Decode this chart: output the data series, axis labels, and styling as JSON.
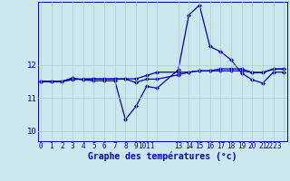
{
  "xlabel": "Graphe des températures (°c)",
  "x_values": [
    0,
    1,
    2,
    3,
    4,
    5,
    6,
    7,
    8,
    9,
    10,
    11,
    13,
    14,
    15,
    16,
    17,
    18,
    19,
    20,
    21,
    22,
    23
  ],
  "line1": [
    11.5,
    11.5,
    11.5,
    11.6,
    11.55,
    11.52,
    11.52,
    11.52,
    10.35,
    10.75,
    11.35,
    11.3,
    11.85,
    13.5,
    13.8,
    12.55,
    12.4,
    12.15,
    11.75,
    11.55,
    11.45,
    11.78,
    11.78
  ],
  "line2": [
    11.5,
    11.5,
    11.5,
    11.6,
    11.55,
    11.57,
    11.57,
    11.57,
    11.57,
    11.47,
    11.57,
    11.57,
    11.7,
    11.78,
    11.82,
    11.82,
    11.82,
    11.82,
    11.82,
    11.77,
    11.77,
    11.87,
    11.87
  ],
  "line3": [
    11.5,
    11.5,
    11.5,
    11.55,
    11.58,
    11.58,
    11.58,
    11.58,
    11.58,
    11.58,
    11.68,
    11.78,
    11.78,
    11.78,
    11.82,
    11.82,
    11.88,
    11.88,
    11.88,
    11.77,
    11.77,
    11.88,
    11.88
  ],
  "ylim": [
    9.7,
    13.9
  ],
  "yticks": [
    10,
    11,
    12
  ],
  "xtick_labels": [
    "0",
    "1",
    "2",
    "3",
    "4",
    "5",
    "6",
    "7",
    "8",
    "9",
    "1011",
    "",
    "13",
    "14",
    "15",
    "16",
    "17",
    "18",
    "19",
    "20",
    "21",
    "2223",
    ""
  ],
  "xtick_positions": [
    0,
    1,
    2,
    3,
    4,
    5,
    6,
    7,
    8,
    9,
    10,
    11,
    13,
    14,
    15,
    16,
    17,
    18,
    19,
    20,
    21,
    22,
    23
  ],
  "xlim": [
    -0.3,
    23.3
  ],
  "bg_color": "#cce8ee",
  "line_color": "#0000bb",
  "grid_color": "#aacccc",
  "marker": "D",
  "markersize": 2.2,
  "linewidth": 0.9,
  "xlabel_color": "#0000bb",
  "xlabel_fontsize": 7.0,
  "tick_fontsize": 5.5,
  "ytick_fontsize": 6.5
}
